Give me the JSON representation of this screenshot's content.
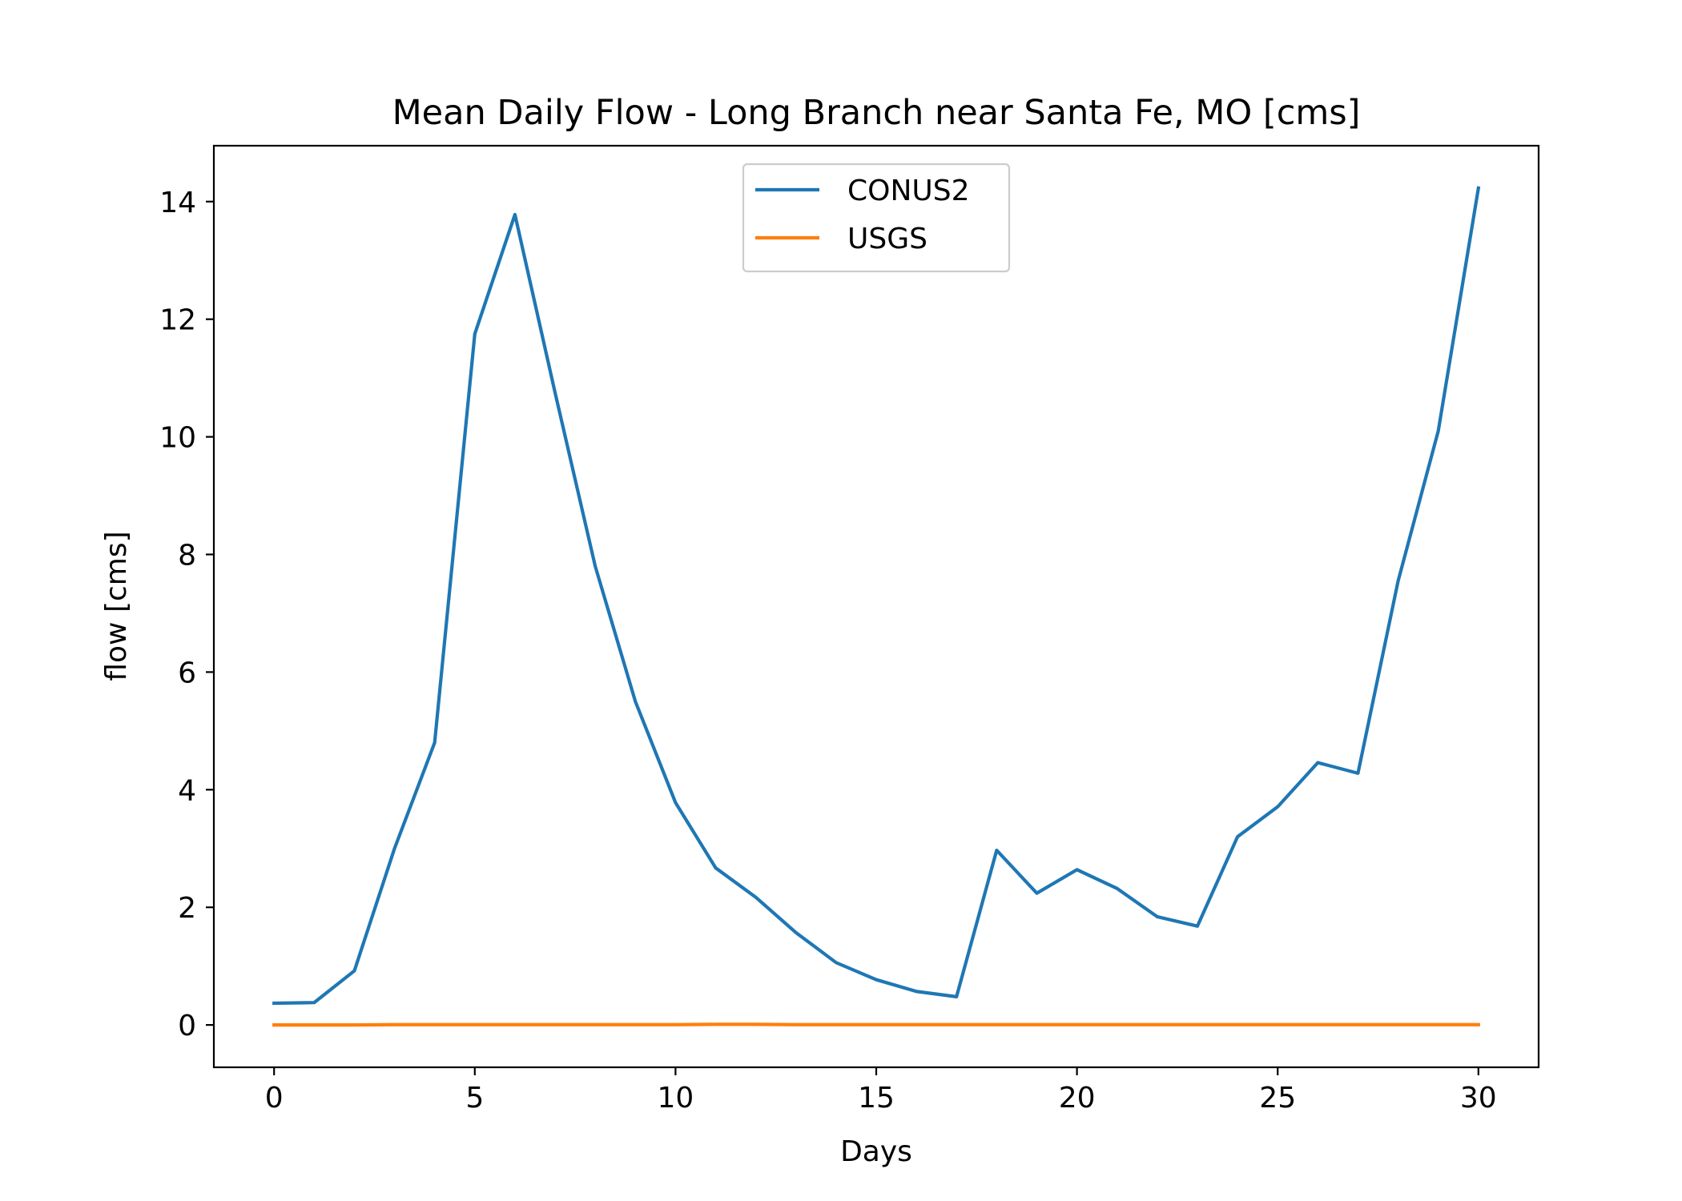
{
  "chart_data": {
    "type": "line",
    "title": "Mean Daily Flow - Long Branch near Santa Fe, MO [cms]",
    "xlabel": "Days",
    "ylabel": "flow [cms]",
    "xlim": [
      -1.5,
      31.5
    ],
    "ylim": [
      -0.72,
      14.95
    ],
    "xticks": [
      0,
      5,
      10,
      15,
      20,
      25,
      30
    ],
    "yticks": [
      0,
      2,
      4,
      6,
      8,
      10,
      12,
      14
    ],
    "grid": false,
    "legend_position": "upper center",
    "x": [
      0,
      1,
      2,
      3,
      4,
      5,
      6,
      7,
      8,
      9,
      10,
      11,
      12,
      13,
      14,
      15,
      16,
      17,
      18,
      19,
      20,
      21,
      22,
      23,
      24,
      25,
      26,
      27,
      28,
      29,
      30
    ],
    "series": [
      {
        "name": "CONUS2",
        "color": "#1f77b4",
        "values": [
          0.37,
          0.38,
          0.92,
          3.0,
          4.8,
          11.75,
          13.78,
          10.75,
          7.8,
          5.5,
          3.78,
          2.67,
          2.17,
          1.57,
          1.06,
          0.77,
          0.57,
          0.48,
          2.97,
          2.24,
          2.64,
          2.32,
          1.84,
          1.68,
          3.2,
          3.71,
          4.46,
          4.28,
          7.55,
          10.1,
          14.23
        ]
      },
      {
        "name": "USGS",
        "color": "#ff7f0e",
        "values": [
          0.0,
          0.0,
          0.0,
          0.005,
          0.005,
          0.005,
          0.005,
          0.005,
          0.005,
          0.005,
          0.005,
          0.01,
          0.01,
          0.005,
          0.005,
          0.005,
          0.005,
          0.005,
          0.005,
          0.005,
          0.005,
          0.005,
          0.005,
          0.005,
          0.005,
          0.005,
          0.005,
          0.005,
          0.005,
          0.005,
          0.005
        ]
      }
    ]
  }
}
